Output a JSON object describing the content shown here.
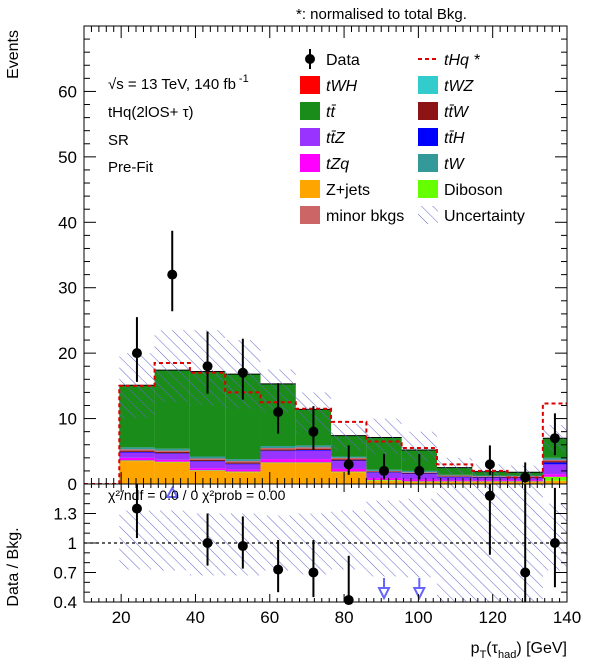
{
  "header_note": "*: normalised to total Bkg.",
  "info": {
    "energy": "√s = 13 TeV, 140 fb",
    "lumi_exp": "-1",
    "channel": "tHq(2lOS+ τ)",
    "region": "SR",
    "stage": "Pre-Fit"
  },
  "colors": {
    "tWH": "#ff0000",
    "tWZ": "#33cccc",
    "ttbar": "#198c19",
    "ttW": "#8c1414",
    "ttZ": "#9933ff",
    "ttH": "#0000ff",
    "tZq": "#ff00ff",
    "tW": "#339999",
    "Zjets": "#ffa500",
    "Diboson": "#66ff00",
    "minor": "#cc6666",
    "uncertainty": "#6666cc",
    "signal": "#dd0000"
  },
  "legend": [
    {
      "key": "data",
      "label": "Data",
      "style": "marker"
    },
    {
      "key": "signal",
      "label": "tHq *",
      "style": "dashed"
    },
    {
      "key": "tWH",
      "label": "tWH",
      "style": "fill"
    },
    {
      "key": "tWZ",
      "label": "tWZ",
      "style": "fill"
    },
    {
      "key": "ttbar",
      "label": "tt̄",
      "style": "fill"
    },
    {
      "key": "ttW",
      "label": "tt̄W",
      "style": "fill"
    },
    {
      "key": "ttZ",
      "label": "tt̄Z",
      "style": "fill"
    },
    {
      "key": "ttH",
      "label": "tt̄H",
      "style": "fill"
    },
    {
      "key": "tZq",
      "label": "tZq",
      "style": "fill"
    },
    {
      "key": "tW",
      "label": "tW",
      "style": "fill"
    },
    {
      "key": "Zjets",
      "label": "Z+jets",
      "style": "fill"
    },
    {
      "key": "Diboson",
      "label": "Diboson",
      "style": "fill"
    },
    {
      "key": "minor",
      "label": "minor bkgs",
      "style": "fill"
    },
    {
      "key": "uncertainty",
      "label": "Uncertainty",
      "style": "hatch"
    }
  ],
  "ratio_text": "χ²/ndf = 0.0 / 0    χ²prob = 0.00",
  "chart_data": [
    {
      "type": "area",
      "style": "stacked histogram",
      "ylabel": "Events",
      "xlim": [
        10,
        140
      ],
      "ylim": [
        0,
        70
      ],
      "yticks": [
        0,
        10,
        20,
        30,
        40,
        50,
        60
      ],
      "bin_edges": [
        10,
        19.5,
        29,
        38.5,
        48,
        57.5,
        67,
        76.5,
        86,
        95.5,
        105,
        114.5,
        124,
        133.5,
        140
      ],
      "series": [
        {
          "key": "Zjets",
          "name": "Z+jets",
          "values": [
            0,
            3.5,
            3.3,
            2.0,
            1.8,
            3.2,
            3.2,
            1.8,
            0.5,
            0.3,
            0.3,
            0.3,
            0.3,
            0.5
          ]
        },
        {
          "key": "Diboson",
          "name": "Diboson",
          "values": [
            0,
            0.1,
            0.1,
            0.1,
            0.1,
            0.1,
            0.1,
            0.1,
            0.1,
            0.1,
            0.1,
            0.1,
            0.1,
            0.6
          ]
        },
        {
          "key": "tZq",
          "name": "tZq",
          "values": [
            0,
            0.4,
            0.3,
            0.3,
            0.3,
            0.5,
            0.5,
            0.4,
            0.3,
            0.3,
            0.2,
            0.2,
            0.2,
            0.4
          ]
        },
        {
          "key": "ttZ",
          "name": "tt̄Z",
          "values": [
            0,
            0.8,
            0.9,
            1.0,
            0.8,
            1.2,
            1.3,
            1.2,
            0.8,
            0.8,
            0.4,
            0.3,
            0.3,
            1.5
          ]
        },
        {
          "key": "ttH",
          "name": "tt̄H",
          "values": [
            0,
            0.1,
            0.1,
            0.1,
            0.1,
            0.1,
            0.1,
            0.1,
            0.1,
            0.1,
            0.1,
            0.1,
            0.1,
            0.3
          ]
        },
        {
          "key": "ttW",
          "name": "tt̄W",
          "values": [
            0,
            0.2,
            0.2,
            0.2,
            0.2,
            0.2,
            0.2,
            0.2,
            0.1,
            0.1,
            0.1,
            0.1,
            0.1,
            0.2
          ]
        },
        {
          "key": "minor",
          "name": "minor bkgs",
          "values": [
            0,
            0.2,
            0.2,
            0.2,
            0.2,
            0.2,
            0.2,
            0.2,
            0.1,
            0.1,
            0.1,
            0.1,
            0.1,
            0.2
          ]
        },
        {
          "key": "tW",
          "name": "tW",
          "values": [
            0,
            0.3,
            0.3,
            0.3,
            0.3,
            0.3,
            0.3,
            0.2,
            0.2,
            0.2,
            0.1,
            0.1,
            0.1,
            0.3
          ]
        },
        {
          "key": "ttbar",
          "name": "tt̄",
          "values": [
            0,
            9.5,
            12.0,
            13.0,
            13.0,
            9.5,
            5.5,
            3.2,
            4.9,
            3.2,
            1.1,
            0.6,
            0.5,
            3.0
          ]
        }
      ],
      "uncertainty": {
        "name": "Uncertainty",
        "lower": [
          0,
          10.0,
          12.5,
          12.0,
          11.5,
          11.0,
          7.8,
          5.0,
          4.5,
          3.5,
          1.3,
          1.0,
          1.0,
          5.0
        ],
        "upper": [
          0,
          20.0,
          23.5,
          23.5,
          22.0,
          17.5,
          14.0,
          9.2,
          10.0,
          8.0,
          4.0,
          3.0,
          2.8,
          9.0
        ]
      },
      "signal": {
        "name": "tHq *",
        "values": [
          0,
          15.0,
          18.5,
          17.0,
          14.0,
          12.5,
          11.5,
          9.5,
          6.5,
          5.5,
          3.0,
          2.0,
          1.0,
          12.3
        ]
      },
      "data": {
        "name": "Data",
        "x": [
          24.25,
          33.75,
          43.25,
          52.75,
          62.25,
          71.75,
          81.25,
          90.75,
          100.25,
          109.75,
          119.25,
          128.75,
          136.75
        ],
        "y": [
          20,
          32,
          18,
          17,
          11,
          8,
          3,
          2,
          2,
          0,
          3,
          1,
          7
        ],
        "err_low": [
          4.4,
          5.6,
          4.2,
          4.1,
          3.3,
          2.8,
          1.6,
          1.3,
          1.3,
          0,
          1.6,
          0.8,
          2.6
        ],
        "err_high": [
          5.5,
          6.7,
          5.3,
          5.2,
          4.4,
          3.9,
          2.9,
          2.6,
          2.6,
          0,
          2.9,
          2.3,
          3.8
        ]
      }
    },
    {
      "type": "scatter",
      "ylabel": "Data / Bkg.",
      "xlabel": "p_T(τ_had) [GeV]",
      "xlim": [
        10,
        140
      ],
      "ylim": [
        0.4,
        1.6
      ],
      "xticks": [
        20,
        40,
        60,
        80,
        100,
        120,
        140
      ],
      "yticks": [
        0.4,
        0.7,
        1,
        1.3
      ],
      "reference_line": 1,
      "uncertainty": {
        "lower": [
          0.73,
          0.72,
          0.67,
          0.67,
          0.72,
          0.68,
          0.73,
          0.66,
          0.65,
          0.4,
          0.4,
          0.4,
          0.72
        ],
        "upper": [
          1.33,
          1.33,
          1.3,
          1.3,
          1.28,
          1.3,
          1.33,
          1.43,
          1.45,
          1.6,
          1.6,
          1.6,
          1.4
        ]
      },
      "x": [
        24.25,
        43.25,
        52.75,
        62.25,
        71.75,
        81.25,
        119.25,
        128.75,
        136.75
      ],
      "y": [
        1.35,
        1.0,
        0.97,
        0.73,
        0.7,
        0.42,
        1.48,
        0.7,
        1.0
      ],
      "err_low": [
        0.3,
        0.23,
        0.23,
        0.23,
        0.25,
        0.3,
        0.6,
        0.6,
        0.45
      ],
      "err_high": [
        0.37,
        0.3,
        0.3,
        0.3,
        0.33,
        0.45,
        0.9,
        0.9,
        0.56
      ],
      "offscale": [
        {
          "x": 33.75,
          "direction": "up"
        },
        {
          "x": 90.75,
          "direction": "down"
        },
        {
          "x": 100.25,
          "direction": "down"
        }
      ]
    }
  ]
}
